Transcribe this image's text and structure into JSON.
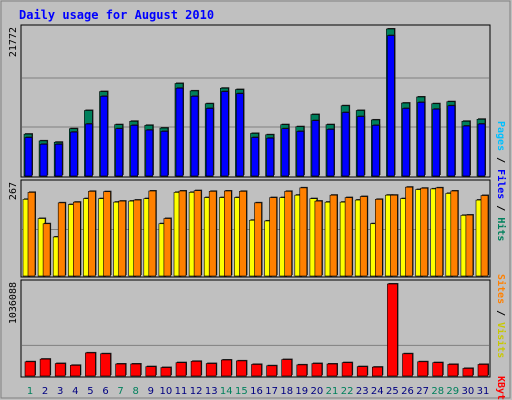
{
  "chart_data": {
    "type": "bar",
    "title": "Daily usage for August 2010",
    "categories": [
      "1",
      "2",
      "3",
      "4",
      "5",
      "6",
      "7",
      "8",
      "9",
      "10",
      "11",
      "12",
      "13",
      "14",
      "15",
      "16",
      "17",
      "18",
      "19",
      "20",
      "21",
      "22",
      "23",
      "24",
      "25",
      "26",
      "27",
      "28",
      "29",
      "30",
      "31"
    ],
    "weekend_days": [
      "1",
      "7",
      "8",
      "14",
      "15",
      "21",
      "22",
      "28",
      "29"
    ],
    "panels": [
      {
        "name": "hits-files-pages",
        "ymax_label": "21772",
        "ymax": 21772,
        "series": [
          {
            "name": "Hits",
            "values": [
              6200,
              5200,
              5000,
              7000,
              9700,
              12500,
              7600,
              8100,
              7500,
              7100,
              13700,
              12600,
              10700,
              13000,
              12800,
              6300,
              6100,
              7600,
              7300,
              9100,
              7600,
              10400,
              9700,
              8300,
              21772,
              10800,
              11700,
              10700,
              11000,
              8100,
              8400
            ]
          },
          {
            "name": "Files",
            "values": [
              5700,
              4700,
              4700,
              6500,
              7700,
              11800,
              7000,
              7500,
              6800,
              6600,
              13000,
              11800,
              10000,
              12500,
              12200,
              5700,
              5600,
              7000,
              6600,
              8200,
              6900,
              9400,
              8800,
              7500,
              20800,
              10000,
              10900,
              9900,
              10400,
              7400,
              7700
            ]
          },
          {
            "name": "Pages",
            "values": [
              0,
              0,
              0,
              0,
              0,
              0,
              0,
              0,
              0,
              0,
              0,
              0,
              0,
              0,
              0,
              0,
              0,
              0,
              0,
              0,
              0,
              0,
              0,
              0,
              0,
              0,
              0,
              0,
              0,
              0,
              0
            ]
          }
        ]
      },
      {
        "name": "visits-sites",
        "ymax_label": "267",
        "ymax": 267,
        "series": [
          {
            "name": "Visits",
            "values": [
              220,
              165,
              112,
              205,
              222,
              222,
              212,
              215,
              222,
              150,
              240,
              240,
              225,
              225,
              225,
              160,
              158,
              225,
              232,
              222,
              212,
              212,
              218,
              150,
              232,
              222,
              248,
              250,
              237,
              174,
              218
            ]
          },
          {
            "name": "Sites",
            "values": [
              240,
              150,
              210,
              212,
              243,
              242,
              215,
              218,
              244,
              165,
              244,
              245,
              243,
              244,
              243,
              210,
              225,
              243,
              253,
              215,
              232,
              225,
              228,
              220,
              232,
              255,
              252,
              253,
              244,
              175,
              231
            ]
          }
        ]
      },
      {
        "name": "kbytes",
        "ymax_label": "1036088",
        "ymax": 1036088,
        "series": [
          {
            "name": "KBytes",
            "values": [
              160000,
              190000,
              140000,
              120000,
              260000,
              250000,
              135000,
              135000,
              105000,
              95000,
              150000,
              165000,
              140000,
              180000,
              170000,
              130000,
              115000,
              185000,
              125000,
              140000,
              135000,
              150000,
              105000,
              100000,
              1036088,
              250000,
              160000,
              150000,
              130000,
              85000,
              130000
            ]
          }
        ]
      }
    ],
    "legend": {
      "top": [
        "Pages",
        "Files",
        "Hits"
      ],
      "middle": [
        "Sites",
        "Visits"
      ],
      "bottom": [
        "KBytes"
      ]
    },
    "grid": true
  },
  "colors": {
    "background": "#c0c0c0",
    "title": "#0000ff",
    "hits": "#00805c",
    "files": "#0000ff",
    "pages": "#00c0ff",
    "visits": "#ffff00",
    "sites": "#ff8000",
    "kbytes": "#ff0000",
    "weekend": "#00805c",
    "weekday": "#000080"
  }
}
